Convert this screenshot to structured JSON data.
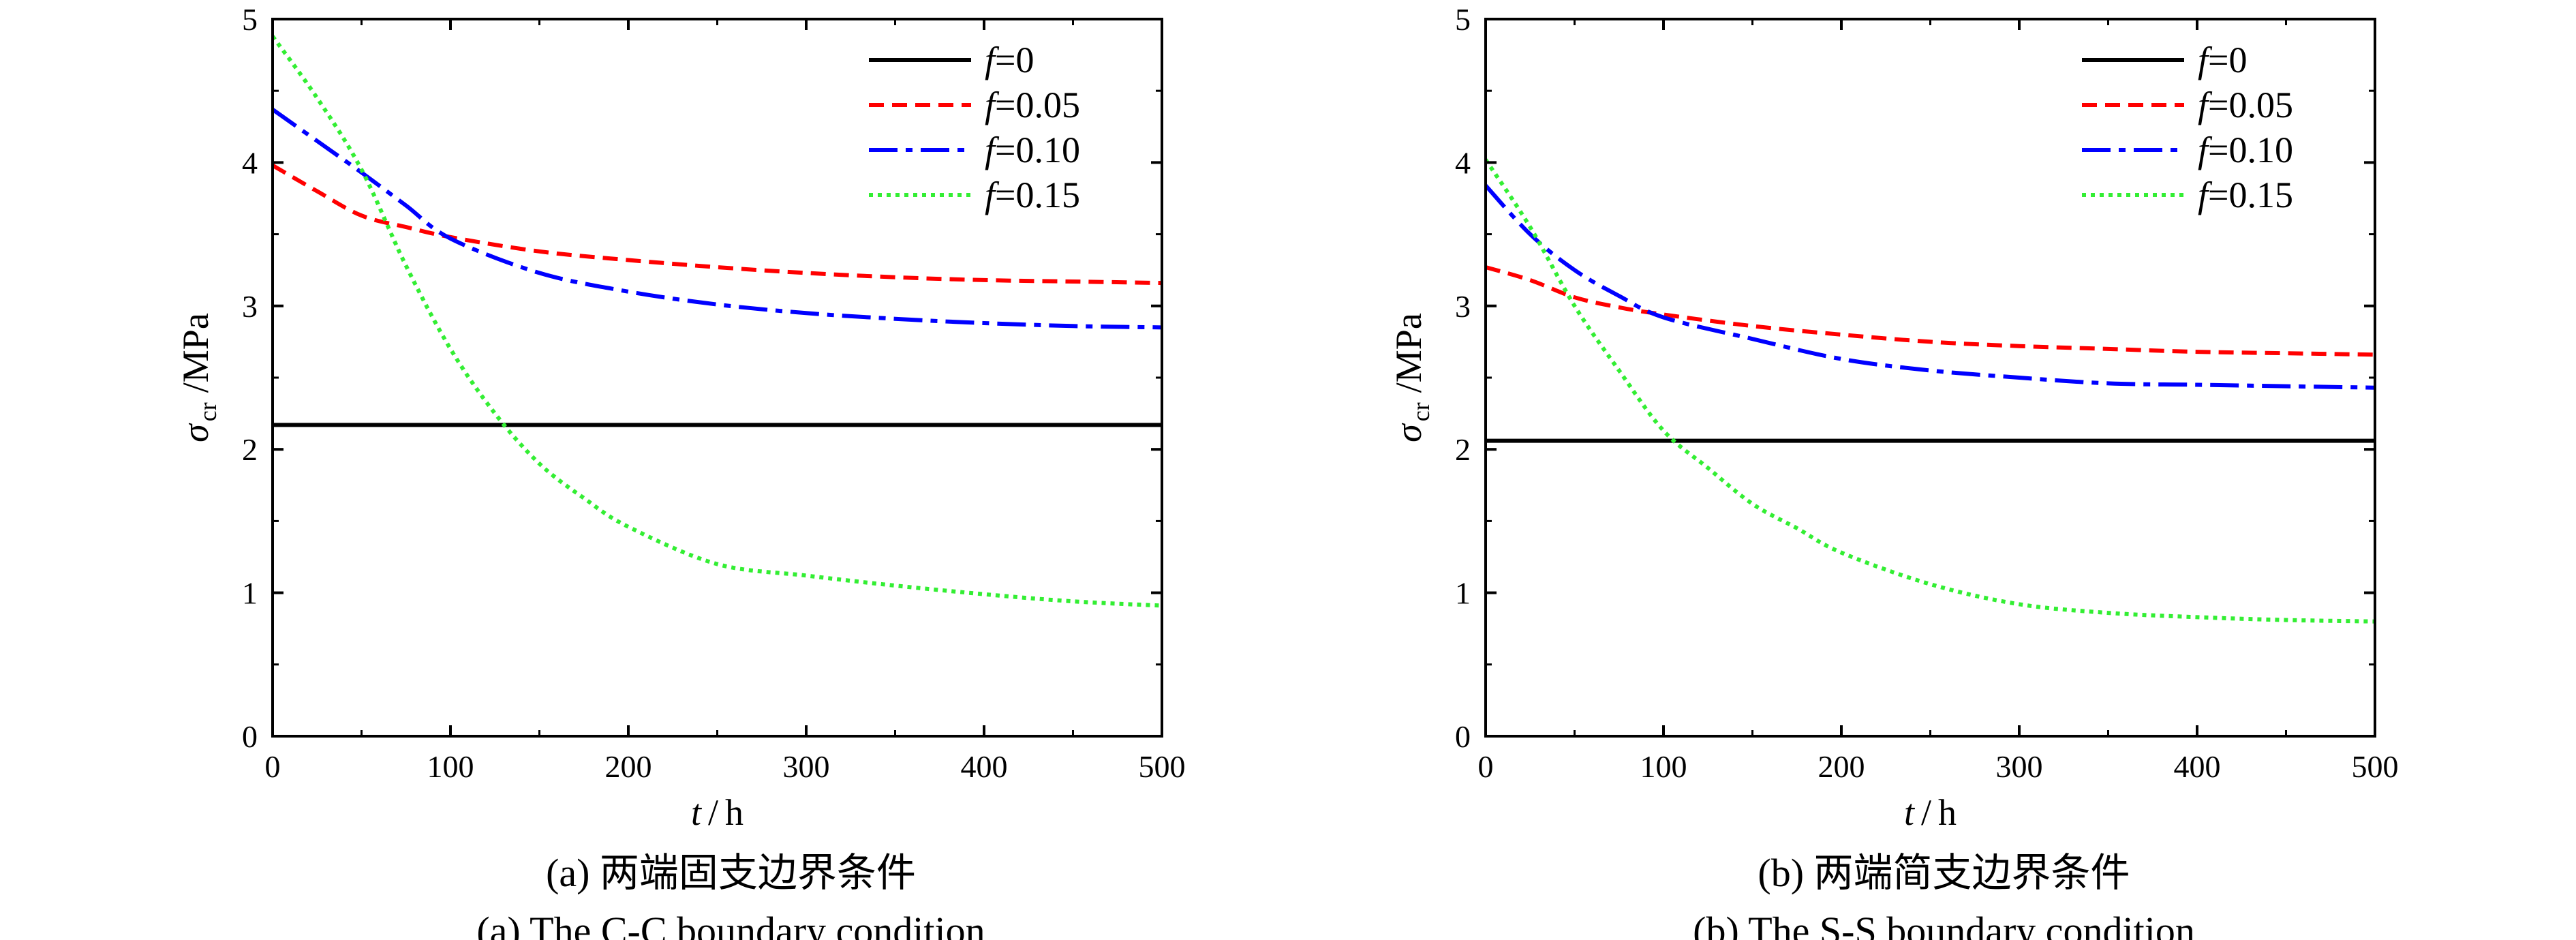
{
  "chart_data": [
    {
      "type": "line",
      "xlabel": {
        "var": "t",
        "unit": "h"
      },
      "ylabel": {
        "var": "σ",
        "sub": "cr",
        "unit": "MPa"
      },
      "xlim": [
        0,
        500
      ],
      "ylim": [
        0,
        5
      ],
      "xticks": [
        0,
        100,
        200,
        300,
        400,
        500
      ],
      "yticks": [
        0,
        1,
        2,
        3,
        4,
        5
      ],
      "legend_position": "top-right",
      "grid": false,
      "caption_cn": "(a) 两端固支边界条件",
      "caption_en": "(a) The C-C boundary condition",
      "series": [
        {
          "name": "f=0",
          "name_var": "f",
          "name_value": "=0",
          "color": "#000000",
          "dash": "solid",
          "x": [
            0,
            500
          ],
          "y": [
            2.17,
            2.17
          ]
        },
        {
          "name": "f=0.05",
          "name_var": "f",
          "name_value": "=0.05",
          "color": "#ff0000",
          "dash": "dash",
          "x": [
            0,
            25,
            50,
            75,
            100,
            150,
            200,
            250,
            300,
            350,
            400,
            450,
            500
          ],
          "y": [
            3.98,
            3.8,
            3.63,
            3.55,
            3.48,
            3.38,
            3.32,
            3.27,
            3.23,
            3.2,
            3.18,
            3.17,
            3.16
          ]
        },
        {
          "name": "f=0.10",
          "name_var": "f",
          "name_value": "=0.10",
          "color": "#0000ff",
          "dash": "dashdot",
          "x": [
            0,
            25,
            50,
            75,
            100,
            150,
            200,
            250,
            300,
            350,
            400,
            450,
            500
          ],
          "y": [
            4.37,
            4.15,
            3.93,
            3.7,
            3.47,
            3.23,
            3.1,
            3.01,
            2.95,
            2.91,
            2.88,
            2.86,
            2.85
          ]
        },
        {
          "name": "f=0.15",
          "name_var": "f",
          "name_value": "=0.15",
          "color": "#33ee33",
          "dash": "dot",
          "x": [
            0,
            25,
            50,
            75,
            100,
            125,
            150,
            175,
            200,
            250,
            300,
            350,
            400,
            450,
            500
          ],
          "y": [
            4.88,
            4.45,
            3.95,
            3.28,
            2.7,
            2.25,
            1.9,
            1.66,
            1.46,
            1.2,
            1.12,
            1.05,
            0.99,
            0.94,
            0.91
          ]
        }
      ]
    },
    {
      "type": "line",
      "xlabel": {
        "var": "t",
        "unit": "h"
      },
      "ylabel": {
        "var": "σ",
        "sub": "cr",
        "unit": "MPa"
      },
      "xlim": [
        0,
        500
      ],
      "ylim": [
        0,
        5
      ],
      "xticks": [
        0,
        100,
        200,
        300,
        400,
        500
      ],
      "yticks": [
        0,
        1,
        2,
        3,
        4,
        5
      ],
      "legend_position": "top-right",
      "grid": false,
      "caption_cn": "(b) 两端简支边界条件",
      "caption_en": "(b) The S-S boundary condition",
      "series": [
        {
          "name": "f=0",
          "name_var": "f",
          "name_value": "=0",
          "color": "#000000",
          "dash": "solid",
          "x": [
            0,
            500
          ],
          "y": [
            2.06,
            2.06
          ]
        },
        {
          "name": "f=0.05",
          "name_var": "f",
          "name_value": "=0.05",
          "color": "#ff0000",
          "dash": "dash",
          "x": [
            0,
            25,
            50,
            75,
            100,
            150,
            200,
            250,
            300,
            350,
            400,
            450,
            500
          ],
          "y": [
            3.27,
            3.18,
            3.06,
            2.99,
            2.94,
            2.86,
            2.8,
            2.75,
            2.72,
            2.7,
            2.68,
            2.67,
            2.66
          ]
        },
        {
          "name": "f=0.10",
          "name_var": "f",
          "name_value": "=0.10",
          "color": "#0000ff",
          "dash": "dashdot",
          "x": [
            0,
            25,
            50,
            75,
            100,
            150,
            200,
            250,
            300,
            350,
            400,
            450,
            500
          ],
          "y": [
            3.84,
            3.5,
            3.25,
            3.07,
            2.92,
            2.77,
            2.63,
            2.55,
            2.5,
            2.46,
            2.45,
            2.44,
            2.43
          ]
        },
        {
          "name": "f=0.15",
          "name_var": "f",
          "name_value": "=0.15",
          "color": "#33ee33",
          "dash": "dot",
          "x": [
            0,
            25,
            50,
            75,
            100,
            125,
            150,
            175,
            200,
            250,
            300,
            350,
            400,
            450,
            500
          ],
          "y": [
            4.02,
            3.55,
            3.0,
            2.55,
            2.13,
            1.87,
            1.62,
            1.45,
            1.28,
            1.06,
            0.92,
            0.86,
            0.83,
            0.81,
            0.8
          ]
        }
      ]
    }
  ]
}
